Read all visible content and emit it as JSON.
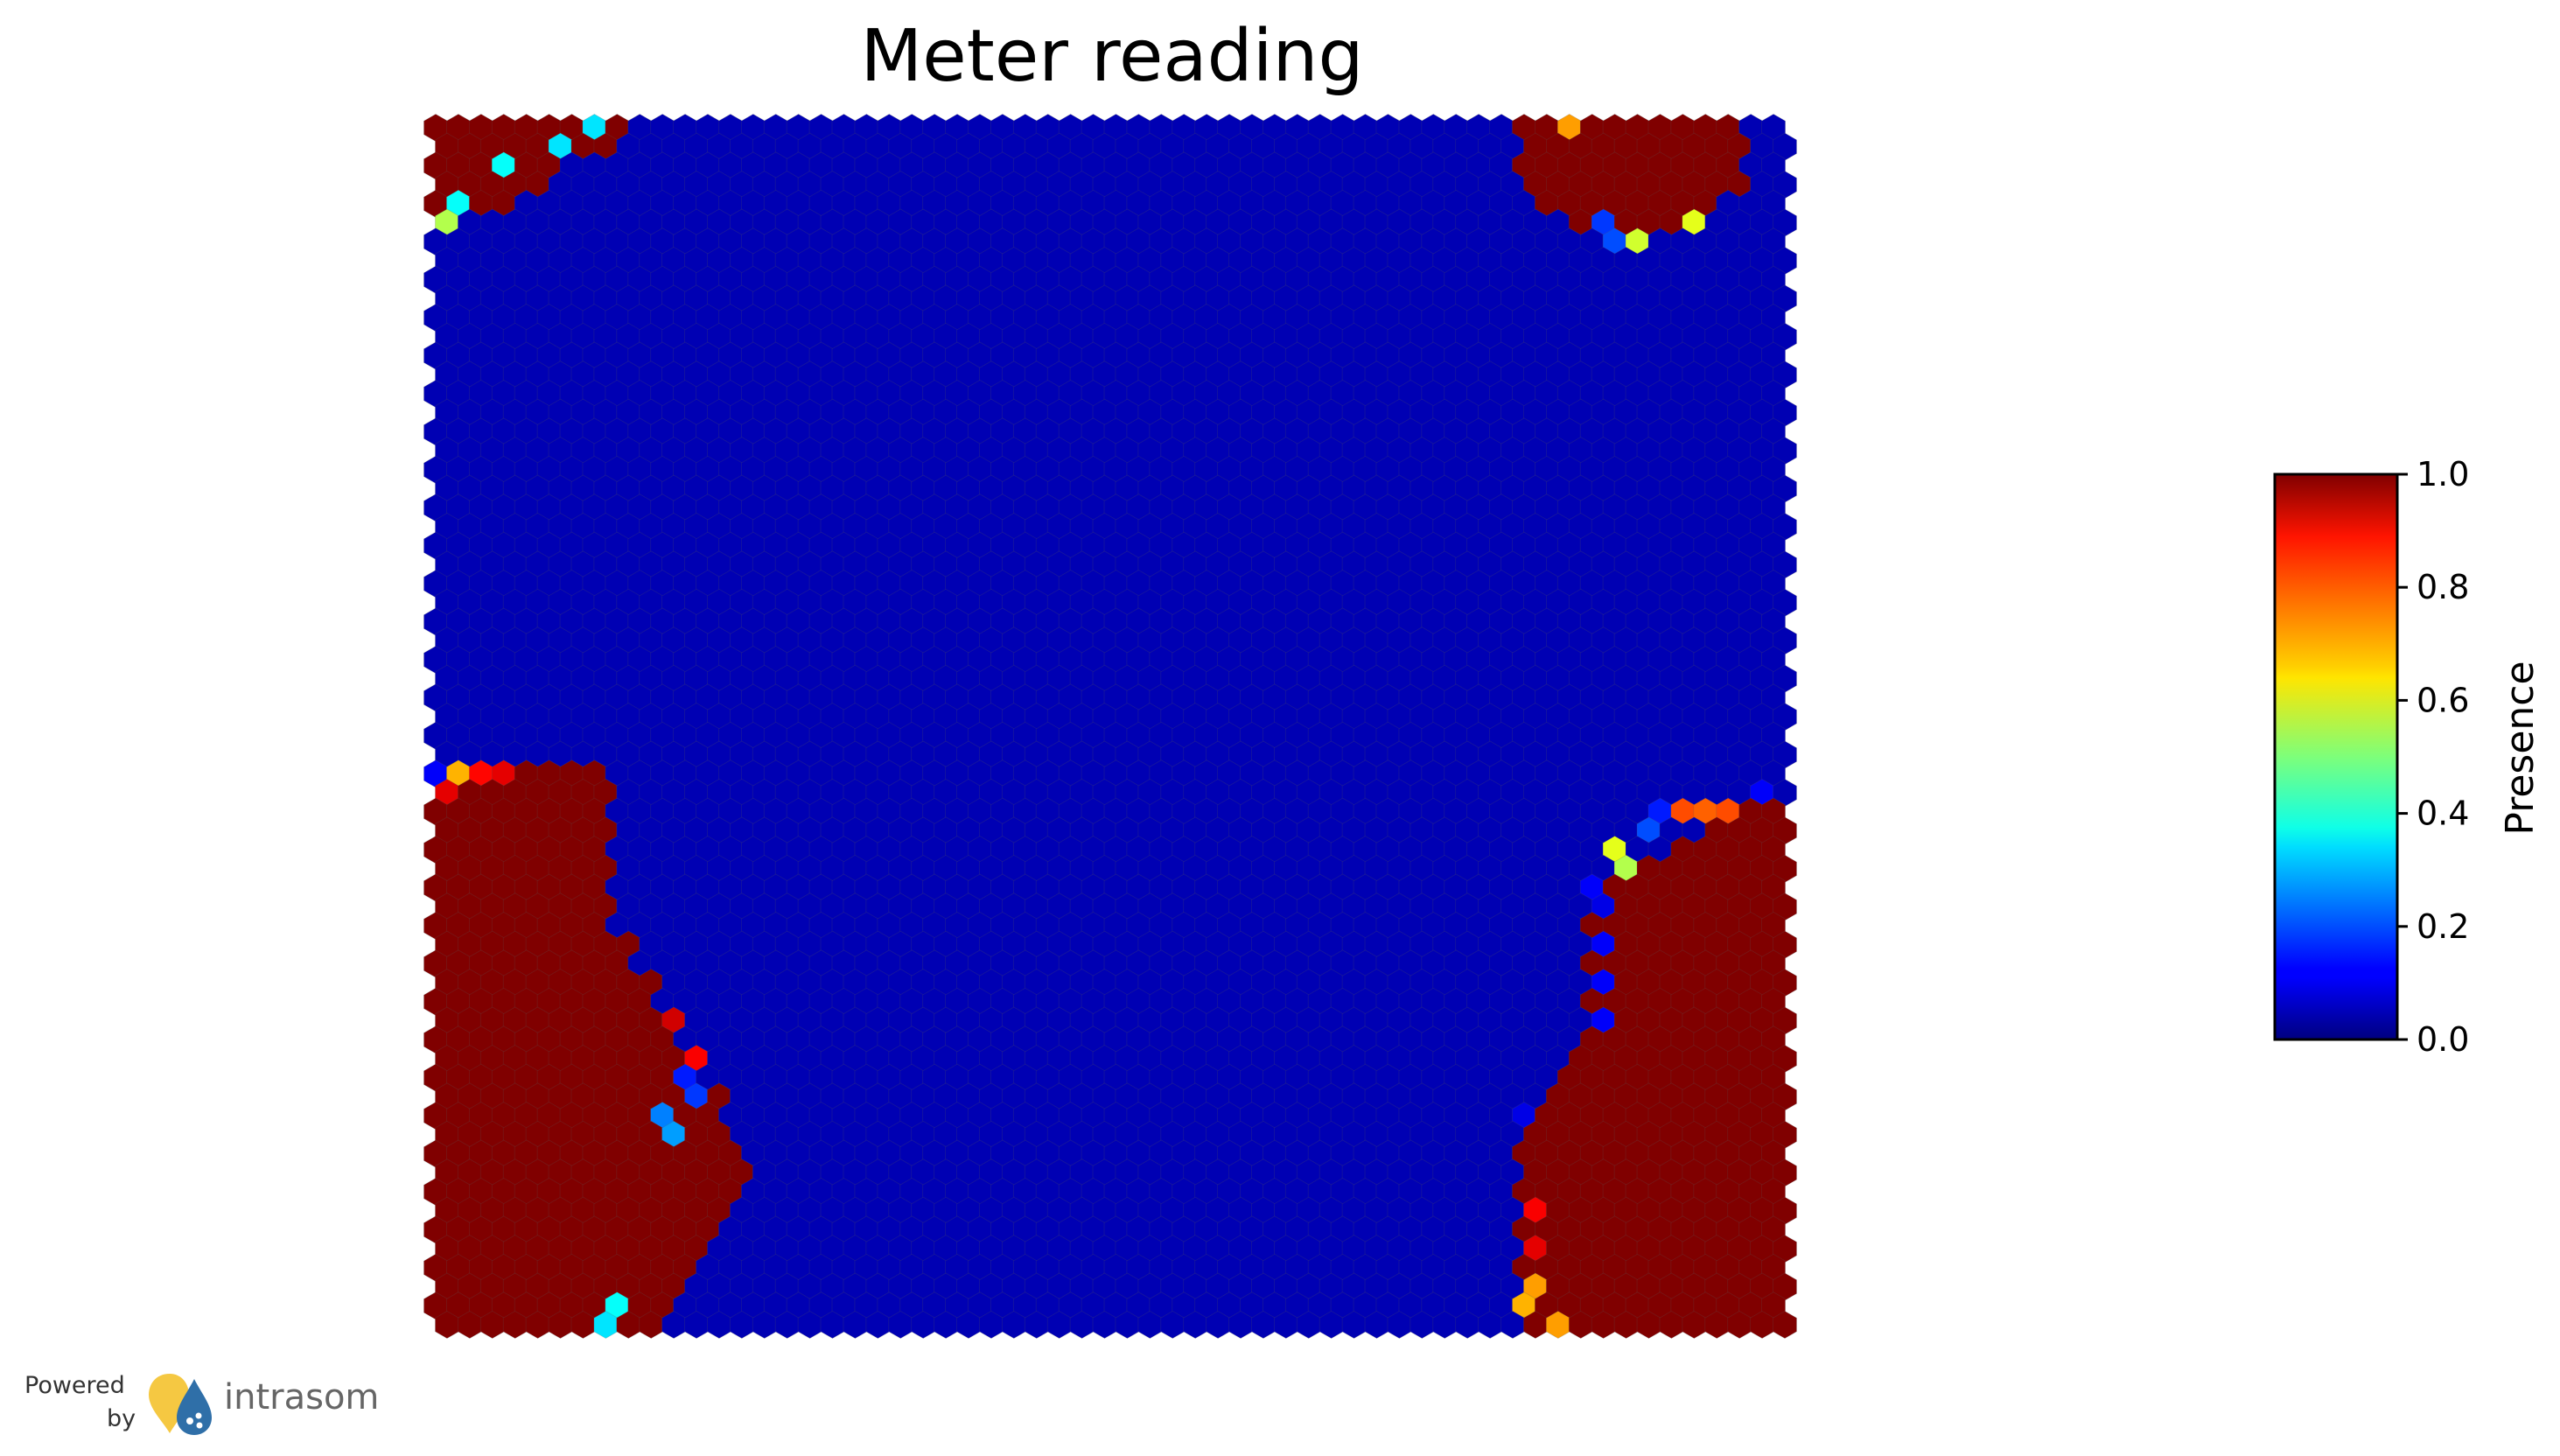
{
  "chart_data": {
    "type": "heatmap",
    "grid": "hexagonal",
    "title": "Meter reading",
    "colormap": "jet",
    "colorbar": {
      "label": "Presence",
      "range": [
        0.0,
        1.0
      ],
      "ticks": [
        "0.0",
        "0.2",
        "0.4",
        "0.6",
        "0.8",
        "1.0"
      ]
    },
    "map_size": {
      "columns": 60,
      "rows": 64
    },
    "regions": [
      {
        "name": "top-left cluster",
        "value": 1.0
      },
      {
        "name": "top-right cluster",
        "value": 1.0
      },
      {
        "name": "bottom-left cluster",
        "value": 1.0
      },
      {
        "name": "bottom-right cluster",
        "value": 1.0
      },
      {
        "name": "background",
        "value": 0.05
      }
    ]
  },
  "branding": {
    "powered": "Powered",
    "by": "by",
    "name": "intrasom"
  },
  "colors": {
    "high": "#800000",
    "low": "#00007f"
  }
}
